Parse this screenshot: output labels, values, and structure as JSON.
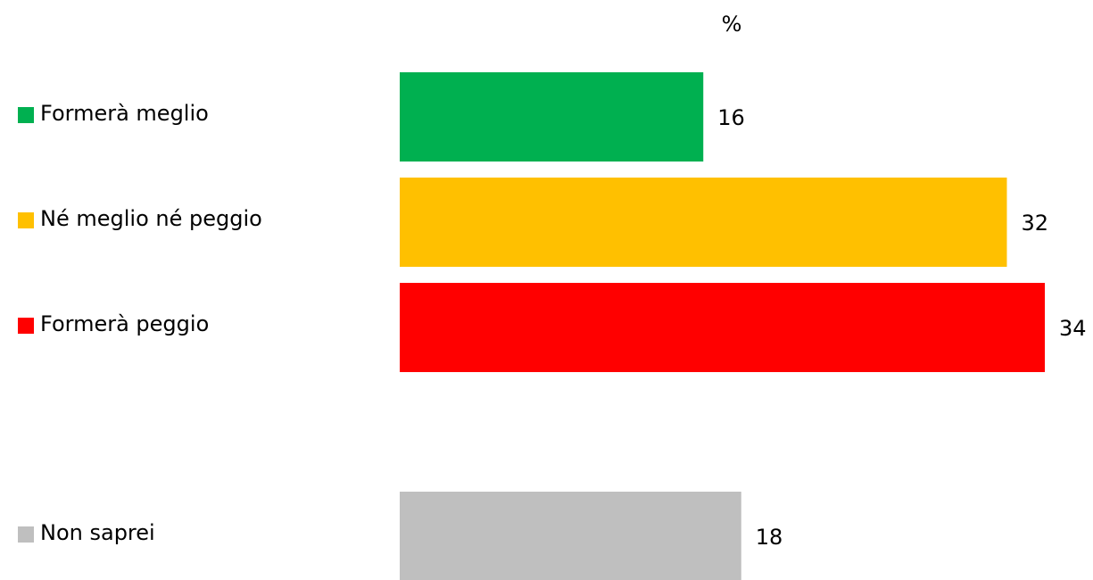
{
  "chart_data": {
    "type": "bar",
    "orientation": "horizontal",
    "title": "%",
    "categories": [
      "Formerà meglio",
      "Né meglio né peggio",
      "Formerà peggio",
      "Non saprei"
    ],
    "values": [
      16,
      32,
      34,
      18
    ],
    "colors": [
      "#00b050",
      "#ffc000",
      "#ff0000",
      "#bfbfbf"
    ]
  }
}
